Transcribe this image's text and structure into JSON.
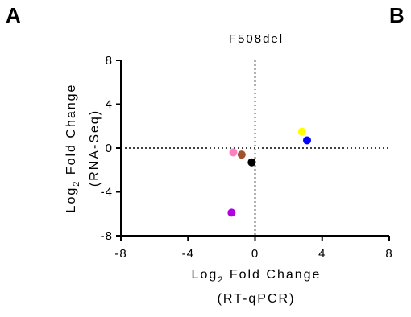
{
  "panels": {
    "left": "A",
    "right": "B"
  },
  "chart_data": {
    "type": "scatter",
    "title": "F508del",
    "xlabel": {
      "line1_pre": "Log",
      "line1_sub": "2",
      "line1_post": " Fold Change",
      "line2": "(RT-qPCR)"
    },
    "ylabel": {
      "line1_pre": "Log",
      "line1_sub": "2",
      "line1_post": " Fold Change",
      "line2": "(RNA-Seq)"
    },
    "xlim": [
      -8,
      8
    ],
    "ylim": [
      -8,
      8
    ],
    "xticks": [
      -8,
      -4,
      0,
      4,
      8
    ],
    "yticks": [
      -8,
      -4,
      0,
      4,
      8
    ],
    "xtick_labels": [
      "-8",
      "-4",
      "0",
      "4",
      "8"
    ],
    "ytick_labels": [
      "-8",
      "-4",
      "0",
      "4",
      "8"
    ],
    "reference_lines": {
      "x0": true,
      "y0": true,
      "style": "dotted"
    },
    "grid": false,
    "points": [
      {
        "x": 2.8,
        "y": 1.5,
        "color": "#ffff00"
      },
      {
        "x": 3.1,
        "y": 0.7,
        "color": "#0000ff"
      },
      {
        "x": -1.3,
        "y": -0.4,
        "color": "#ff80c0"
      },
      {
        "x": -0.8,
        "y": -0.6,
        "color": "#a0522d"
      },
      {
        "x": -0.2,
        "y": -1.3,
        "color": "#000000"
      },
      {
        "x": -1.4,
        "y": -5.9,
        "color": "#b000e0"
      }
    ]
  }
}
